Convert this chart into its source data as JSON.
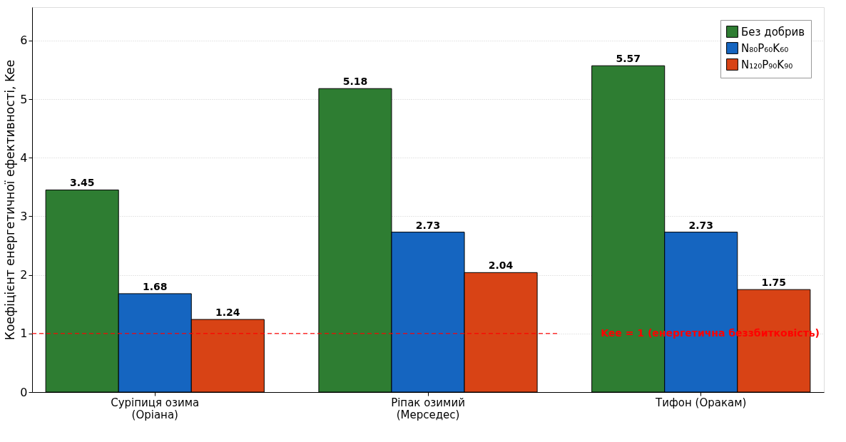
{
  "chart_data": {
    "type": "bar",
    "ylabel": "Коефіцієнт енергетичної ефективності, Kee",
    "categories": [
      "Суріпиця озима\n(Оріана)",
      "Ріпак озимий\n(Мерседес)",
      "Тифон (Оракам)"
    ],
    "series": [
      {
        "name": "Без добрив",
        "color": "#2e7d32",
        "values": [
          3.45,
          5.18,
          5.57
        ]
      },
      {
        "name": "N₈₀P₆₀K₆₀",
        "color": "#1565c0",
        "values": [
          1.68,
          2.73,
          2.73
        ]
      },
      {
        "name": "N₁₂₀P₉₀K₉₀",
        "color": "#d84315",
        "values": [
          1.24,
          2.04,
          1.75
        ]
      }
    ],
    "ylim": [
      0,
      6.57
    ],
    "yticks": [
      0,
      1,
      2,
      3,
      4,
      5,
      6
    ],
    "grid": "y",
    "legend": "top right",
    "data_labels": true,
    "ref_lines": [
      {
        "axis": "y",
        "value": 1,
        "label": "Kee = 1 (енергетична беззбитковість)",
        "color": "#ff0000",
        "line_style": "dashed"
      }
    ]
  }
}
